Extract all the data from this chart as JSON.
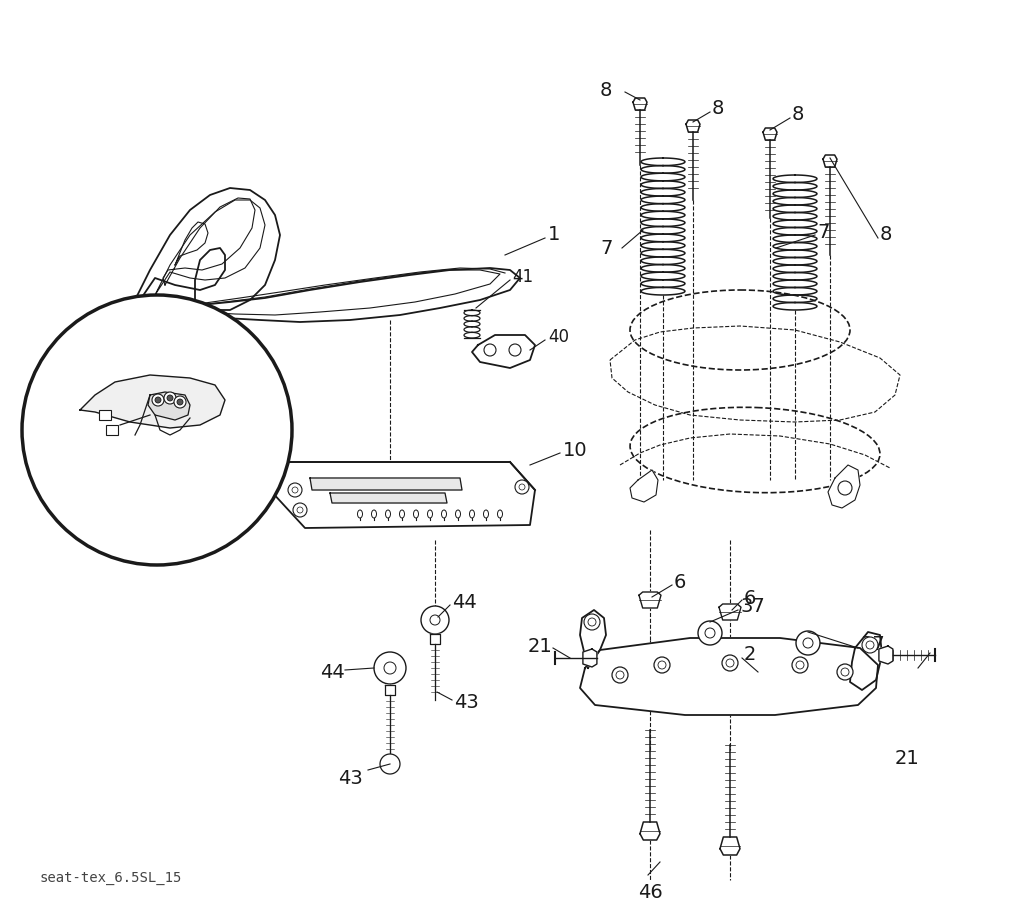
{
  "background_color": "#ffffff",
  "watermark_text": "seat-tex_6.5SL_15",
  "black": "#1a1a1a"
}
